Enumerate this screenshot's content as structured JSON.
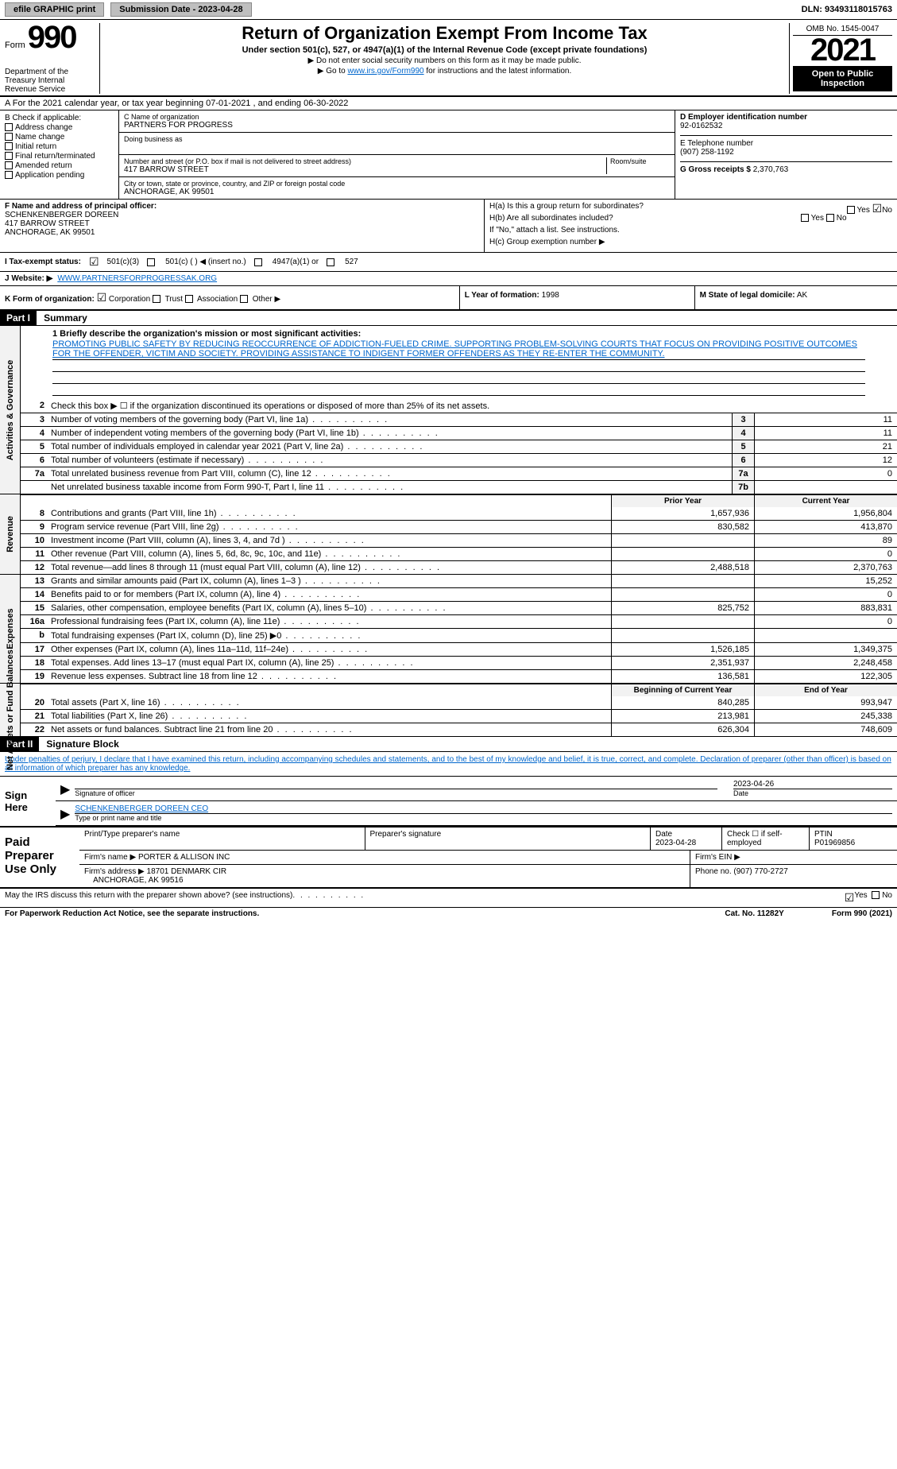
{
  "top": {
    "efile_label": "efile GRAPHIC print",
    "sub_btn": "Submission Date - 2023-04-28",
    "dln": "DLN: 93493118015763"
  },
  "header": {
    "form_word": "Form",
    "form_num": "990",
    "dept": "Department of the Treasury\nInternal Revenue Service",
    "title": "Return of Organization Exempt From Income Tax",
    "subtitle": "Under section 501(c), 527, or 4947(a)(1) of the Internal Revenue Code (except private foundations)",
    "note1": "▶ Do not enter social security numbers on this form as it may be made public.",
    "note2_pre": "▶ Go to ",
    "note2_link": "www.irs.gov/Form990",
    "note2_post": " for instructions and the latest information.",
    "omb": "OMB No. 1545-0047",
    "year": "2021",
    "open_pub": "Open to Public Inspection"
  },
  "rowA": "A For the 2021 calendar year, or tax year beginning 07-01-2021  , and ending 06-30-2022",
  "sectionB": {
    "label": "B Check if applicable:",
    "items": [
      "Address change",
      "Name change",
      "Initial return",
      "Final return/terminated",
      "Amended return",
      "Application pending"
    ]
  },
  "sectionC": {
    "name_label": "C Name of organization",
    "name": "PARTNERS FOR PROGRESS",
    "dba_label": "Doing business as",
    "street_label": "Number and street (or P.O. box if mail is not delivered to street address)",
    "room_label": "Room/suite",
    "street": "417 BARROW STREET",
    "city_label": "City or town, state or province, country, and ZIP or foreign postal code",
    "city": "ANCHORAGE, AK  99501"
  },
  "sectionD": {
    "label": "D Employer identification number",
    "value": "92-0162532"
  },
  "sectionE": {
    "label": "E Telephone number",
    "value": "(907) 258-1192"
  },
  "sectionG": {
    "label": "G Gross receipts $",
    "value": "2,370,763"
  },
  "sectionF": {
    "label": "F Name and address of principal officer:",
    "name": "SCHENKENBERGER DOREEN",
    "street": "417 BARROW STREET",
    "city": "ANCHORAGE, AK  99501"
  },
  "sectionH": {
    "a": "H(a)  Is this a group return for subordinates?",
    "a_yes": "Yes",
    "a_no_checked": "No",
    "b": "H(b)  Are all subordinates included?",
    "b_yes": "Yes",
    "b_no": "No",
    "b_note": "If \"No,\" attach a list. See instructions.",
    "c": "H(c)  Group exemption number ▶"
  },
  "sectionI": {
    "label": "I  Tax-exempt status:",
    "opt1": "501(c)(3)",
    "opt2": "501(c) (   ) ◀ (insert no.)",
    "opt3": "4947(a)(1) or",
    "opt4": "527"
  },
  "sectionJ": {
    "label": "J  Website: ▶",
    "value": "WWW.PARTNERSFORPROGRESSAK.ORG"
  },
  "sectionK": {
    "label": "K Form of organization:",
    "corp": "Corporation",
    "trust": "Trust",
    "assoc": "Association",
    "other": "Other ▶"
  },
  "sectionL": {
    "label": "L Year of formation:",
    "value": "1998"
  },
  "sectionM": {
    "label": "M State of legal domicile:",
    "value": "AK"
  },
  "part1": {
    "num": "Part I",
    "title": "Summary"
  },
  "mission": {
    "line1_label": "1  Briefly describe the organization's mission or most significant activities:",
    "text": "PROMOTING PUBLIC SAFETY BY REDUCING REOCCURRENCE OF ADDICTION-FUELED CRIME. SUPPORTING PROBLEM-SOLVING COURTS THAT FOCUS ON PROVIDING POSITIVE OUTCOMES FOR THE OFFENDER, VICTIM AND SOCIETY. PROVIDING ASSISTANCE TO INDIGENT FORMER OFFENDERS AS THEY RE-ENTER THE COMMUNITY."
  },
  "governance_label": "Activities & Governance",
  "revenue_label": "Revenue",
  "expenses_label": "Expenses",
  "netassets_label": "Net Assets or Fund Balances",
  "lines_gov": [
    {
      "n": "2",
      "t": "Check this box ▶ ☐ if the organization discontinued its operations or disposed of more than 25% of its net assets."
    },
    {
      "n": "3",
      "t": "Number of voting members of the governing body (Part VI, line 1a)",
      "box": "3",
      "v": "11"
    },
    {
      "n": "4",
      "t": "Number of independent voting members of the governing body (Part VI, line 1b)",
      "box": "4",
      "v": "11"
    },
    {
      "n": "5",
      "t": "Total number of individuals employed in calendar year 2021 (Part V, line 2a)",
      "box": "5",
      "v": "21"
    },
    {
      "n": "6",
      "t": "Total number of volunteers (estimate if necessary)",
      "box": "6",
      "v": "12"
    },
    {
      "n": "7a",
      "t": "Total unrelated business revenue from Part VIII, column (C), line 12",
      "box": "7a",
      "v": "0"
    },
    {
      "n": "",
      "t": "Net unrelated business taxable income from Form 990-T, Part I, line 11",
      "box": "7b",
      "v": ""
    }
  ],
  "col_hdr_prior": "Prior Year",
  "col_hdr_current": "Current Year",
  "lines_rev": [
    {
      "n": "8",
      "t": "Contributions and grants (Part VIII, line 1h)",
      "p": "1,657,936",
      "c": "1,956,804"
    },
    {
      "n": "9",
      "t": "Program service revenue (Part VIII, line 2g)",
      "p": "830,582",
      "c": "413,870"
    },
    {
      "n": "10",
      "t": "Investment income (Part VIII, column (A), lines 3, 4, and 7d )",
      "p": "",
      "c": "89"
    },
    {
      "n": "11",
      "t": "Other revenue (Part VIII, column (A), lines 5, 6d, 8c, 9c, 10c, and 11e)",
      "p": "",
      "c": "0"
    },
    {
      "n": "12",
      "t": "Total revenue—add lines 8 through 11 (must equal Part VIII, column (A), line 12)",
      "p": "2,488,518",
      "c": "2,370,763"
    }
  ],
  "lines_exp": [
    {
      "n": "13",
      "t": "Grants and similar amounts paid (Part IX, column (A), lines 1–3 )",
      "p": "",
      "c": "15,252"
    },
    {
      "n": "14",
      "t": "Benefits paid to or for members (Part IX, column (A), line 4)",
      "p": "",
      "c": "0"
    },
    {
      "n": "15",
      "t": "Salaries, other compensation, employee benefits (Part IX, column (A), lines 5–10)",
      "p": "825,752",
      "c": "883,831"
    },
    {
      "n": "16a",
      "t": "Professional fundraising fees (Part IX, column (A), line 11e)",
      "p": "",
      "c": "0"
    },
    {
      "n": "b",
      "t": "Total fundraising expenses (Part IX, column (D), line 25) ▶0",
      "p": "",
      "c": ""
    },
    {
      "n": "17",
      "t": "Other expenses (Part IX, column (A), lines 11a–11d, 11f–24e)",
      "p": "1,526,185",
      "c": "1,349,375"
    },
    {
      "n": "18",
      "t": "Total expenses. Add lines 13–17 (must equal Part IX, column (A), line 25)",
      "p": "2,351,937",
      "c": "2,248,458"
    },
    {
      "n": "19",
      "t": "Revenue less expenses. Subtract line 18 from line 12",
      "p": "136,581",
      "c": "122,305"
    }
  ],
  "col_hdr_bgn": "Beginning of Current Year",
  "col_hdr_end": "End of Year",
  "lines_net": [
    {
      "n": "20",
      "t": "Total assets (Part X, line 16)",
      "p": "840,285",
      "c": "993,947"
    },
    {
      "n": "21",
      "t": "Total liabilities (Part X, line 26)",
      "p": "213,981",
      "c": "245,338"
    },
    {
      "n": "22",
      "t": "Net assets or fund balances. Subtract line 21 from line 20",
      "p": "626,304",
      "c": "748,609"
    }
  ],
  "part2": {
    "num": "Part II",
    "title": "Signature Block"
  },
  "sig_decl": "Under penalties of perjury, I declare that I have examined this return, including accompanying schedules and statements, and to the best of my knowledge and belief, it is true, correct, and complete. Declaration of preparer (other than officer) is based on all information of which preparer has any knowledge.",
  "sign_here": "Sign Here",
  "sig_officer_label": "Signature of officer",
  "sig_date": "2023-04-26",
  "sig_date_label": "Date",
  "sig_name": "SCHENKENBERGER DOREEN  CEO",
  "sig_name_label": "Type or print name and title",
  "paid_label": "Paid Preparer Use Only",
  "paid": {
    "print_label": "Print/Type preparer's name",
    "prep_sig_label": "Preparer's signature",
    "date_label": "Date",
    "date": "2023-04-28",
    "check_label": "Check ☐ if self-employed",
    "ptin_label": "PTIN",
    "ptin": "P01969856",
    "firm_name_label": "Firm's name  ▶",
    "firm_name": "PORTER & ALLISON INC",
    "firm_ein_label": "Firm's EIN ▶",
    "firm_addr_label": "Firm's address ▶",
    "firm_addr": "18701 DENMARK CIR",
    "firm_city": "ANCHORAGE, AK  99516",
    "phone_label": "Phone no.",
    "phone": "(907) 770-2727"
  },
  "may_irs": "May the IRS discuss this return with the preparer shown above? (see instructions)",
  "may_yes": "Yes",
  "may_no": "No",
  "pra": "For Paperwork Reduction Act Notice, see the separate instructions.",
  "cat": "Cat. No. 11282Y",
  "form_footer": "Form 990 (2021)",
  "colors": {
    "link": "#0066cc",
    "header_bg": "#000000",
    "shade": "#f2f2f2"
  }
}
